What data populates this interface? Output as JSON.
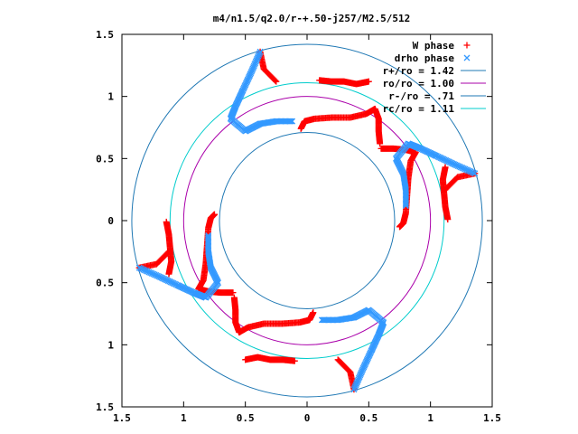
{
  "chart_data": {
    "type": "scatter",
    "title": "m4/n1.5/q2.0/r-+.50-j257/M2.5/512",
    "xlim": [
      -1.5,
      1.5
    ],
    "ylim": [
      -1.5,
      1.5
    ],
    "xticks": [
      "1.5",
      "1",
      "0.5",
      "0",
      "0.5",
      "1",
      "1.5"
    ],
    "yticks": [
      "1.5",
      "1",
      "0.5",
      "0",
      "0.5",
      "1",
      "1.5"
    ],
    "grid": false,
    "legend_position": "top-right",
    "legend": [
      {
        "label": "W phase",
        "marker": "+",
        "color": "#ff0000"
      },
      {
        "label": "drho phase",
        "marker": "x",
        "color": "#3399ff"
      },
      {
        "label": "r+/ro = 1.42",
        "line": true,
        "color": "#1f78b4"
      },
      {
        "label": "ro/ro = 1.00",
        "line": true,
        "color": "#aa00aa"
      },
      {
        "label": "r-/ro = .71",
        "line": true,
        "color": "#1f78b4"
      },
      {
        "label": "rc/ro = 1.11",
        "line": true,
        "color": "#00cccc"
      }
    ],
    "circles": [
      {
        "r": 1.42,
        "color": "#1f78b4"
      },
      {
        "r": 1.0,
        "color": "#aa00aa"
      },
      {
        "r": 0.71,
        "color": "#1f78b4"
      },
      {
        "r": 1.11,
        "color": "#00cccc"
      }
    ],
    "series": [
      {
        "name": "W phase",
        "color": "#ff0000",
        "marker": "+",
        "arms": [
          [
            [
              -0.05,
              0.74
            ],
            [
              -0.02,
              0.8
            ],
            [
              0.06,
              0.82
            ],
            [
              0.2,
              0.83
            ],
            [
              0.35,
              0.83
            ],
            [
              0.48,
              0.86
            ],
            [
              0.55,
              0.9
            ],
            [
              0.58,
              0.82
            ],
            [
              0.58,
              0.72
            ],
            [
              0.59,
              0.62
            ]
          ],
          [
            [
              0.5,
              1.12
            ],
            [
              0.4,
              1.1
            ],
            [
              0.3,
              1.12
            ],
            [
              0.2,
              1.12
            ],
            [
              0.1,
              1.13
            ]
          ],
          [
            [
              0.75,
              -0.05
            ],
            [
              0.78,
              -0.02
            ],
            [
              0.8,
              0.06
            ],
            [
              0.81,
              0.2
            ],
            [
              0.82,
              0.34
            ],
            [
              0.84,
              0.48
            ],
            [
              0.88,
              0.55
            ],
            [
              0.8,
              0.57
            ],
            [
              0.7,
              0.58
            ],
            [
              0.6,
              0.58
            ]
          ],
          [
            [
              1.12,
              0.43
            ],
            [
              1.1,
              0.33
            ],
            [
              1.11,
              0.22
            ],
            [
              1.12,
              0.11
            ],
            [
              1.14,
              0.01
            ]
          ],
          [
            [
              0.05,
              -0.74
            ],
            [
              0.02,
              -0.8
            ],
            [
              -0.06,
              -0.82
            ],
            [
              -0.2,
              -0.83
            ],
            [
              -0.35,
              -0.83
            ],
            [
              -0.48,
              -0.86
            ],
            [
              -0.55,
              -0.9
            ],
            [
              -0.58,
              -0.82
            ],
            [
              -0.58,
              -0.72
            ],
            [
              -0.59,
              -0.62
            ]
          ],
          [
            [
              -0.5,
              -1.12
            ],
            [
              -0.4,
              -1.1
            ],
            [
              -0.3,
              -1.12
            ],
            [
              -0.2,
              -1.12
            ],
            [
              -0.1,
              -1.13
            ]
          ],
          [
            [
              -0.75,
              0.05
            ],
            [
              -0.78,
              0.02
            ],
            [
              -0.8,
              -0.06
            ],
            [
              -0.81,
              -0.2
            ],
            [
              -0.82,
              -0.34
            ],
            [
              -0.84,
              -0.48
            ],
            [
              -0.88,
              -0.55
            ],
            [
              -0.8,
              -0.57
            ],
            [
              -0.7,
              -0.58
            ],
            [
              -0.6,
              -0.58
            ]
          ],
          [
            [
              -1.12,
              -0.43
            ],
            [
              -1.1,
              -0.33
            ],
            [
              -1.11,
              -0.22
            ],
            [
              -1.12,
              -0.11
            ],
            [
              -1.14,
              -0.01
            ]
          ],
          [
            [
              -0.38,
              1.36
            ],
            [
              -0.35,
              1.22
            ],
            [
              -0.25,
              1.12
            ]
          ],
          [
            [
              1.36,
              0.38
            ],
            [
              1.22,
              0.35
            ],
            [
              1.12,
              0.25
            ]
          ],
          [
            [
              0.38,
              -1.36
            ],
            [
              0.35,
              -1.22
            ],
            [
              0.25,
              -1.12
            ]
          ],
          [
            [
              -1.36,
              -0.38
            ],
            [
              -1.22,
              -0.35
            ],
            [
              -1.12,
              -0.25
            ]
          ]
        ]
      },
      {
        "name": "drho phase",
        "color": "#3399ff",
        "marker": "x",
        "arms": [
          [
            [
              -0.38,
              1.36
            ],
            [
              -0.45,
              1.2
            ],
            [
              -0.52,
              1.05
            ],
            [
              -0.58,
              0.92
            ],
            [
              -0.62,
              0.82
            ],
            [
              -0.5,
              0.72
            ],
            [
              -0.38,
              0.78
            ],
            [
              -0.25,
              0.8
            ],
            [
              -0.12,
              0.8
            ]
          ],
          [
            [
              1.36,
              0.38
            ],
            [
              1.2,
              0.45
            ],
            [
              1.05,
              0.52
            ],
            [
              0.92,
              0.58
            ],
            [
              0.82,
              0.62
            ],
            [
              0.72,
              0.5
            ],
            [
              0.78,
              0.38
            ],
            [
              0.8,
              0.25
            ],
            [
              0.8,
              0.12
            ]
          ],
          [
            [
              0.38,
              -1.36
            ],
            [
              0.45,
              -1.2
            ],
            [
              0.52,
              -1.05
            ],
            [
              0.58,
              -0.92
            ],
            [
              0.62,
              -0.82
            ],
            [
              0.5,
              -0.72
            ],
            [
              0.38,
              -0.78
            ],
            [
              0.25,
              -0.8
            ],
            [
              0.12,
              -0.8
            ]
          ],
          [
            [
              -1.36,
              -0.38
            ],
            [
              -1.2,
              -0.45
            ],
            [
              -1.05,
              -0.52
            ],
            [
              -0.92,
              -0.58
            ],
            [
              -0.82,
              -0.62
            ],
            [
              -0.72,
              -0.5
            ],
            [
              -0.78,
              -0.38
            ],
            [
              -0.8,
              -0.25
            ],
            [
              -0.8,
              -0.12
            ]
          ]
        ]
      }
    ]
  }
}
